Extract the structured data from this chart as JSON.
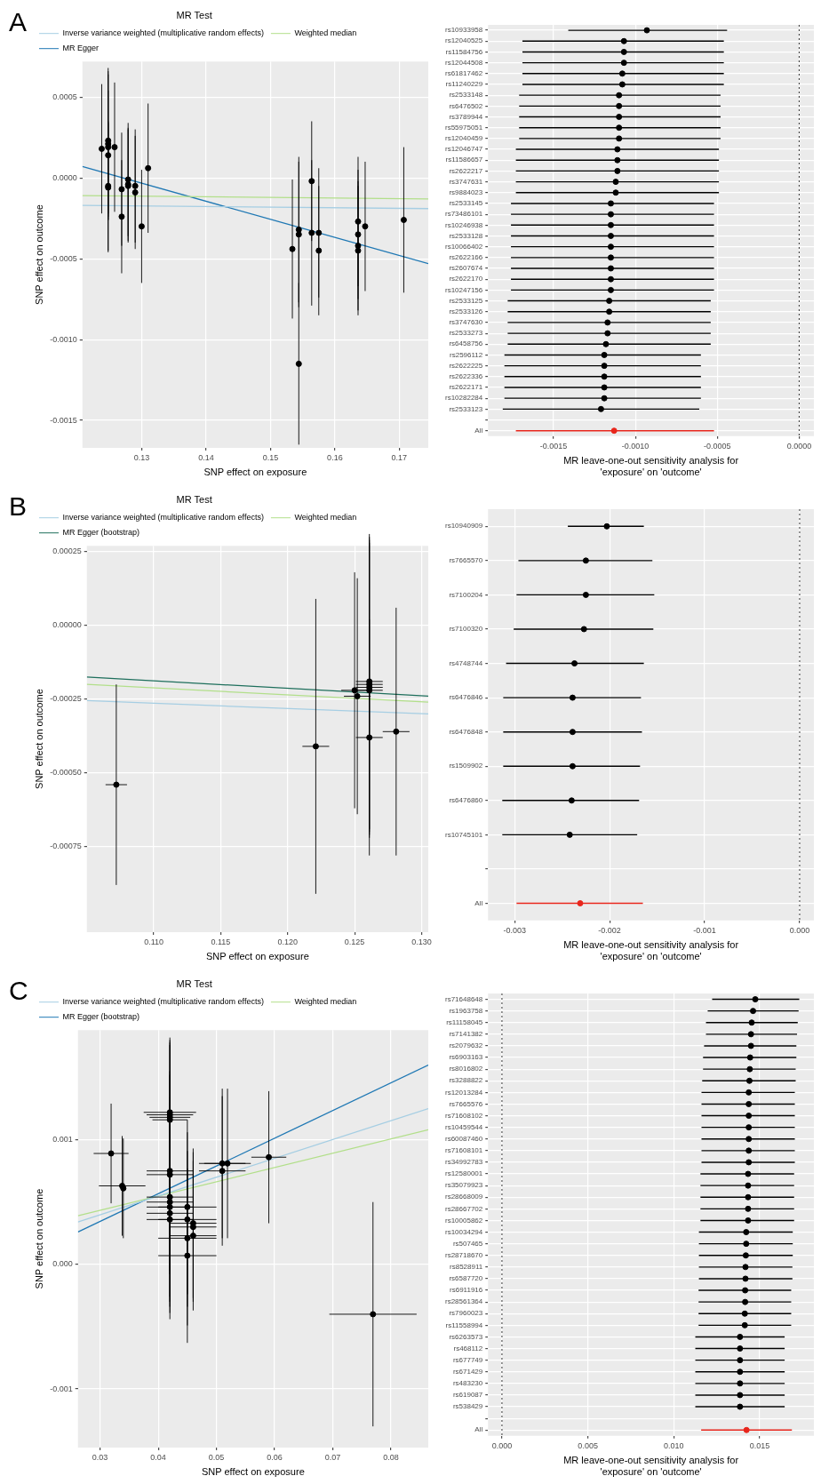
{
  "chart_data": [
    {
      "type": "scatter",
      "title": "A",
      "legend_title": "MR Test",
      "legend": "top",
      "marker": "circle",
      "grid": true,
      "xlabel": "SNP effect on exposure",
      "ylabel": "SNP effect on outcome",
      "xlim": [
        0.1208,
        0.1745
      ],
      "ylim": [
        -0.00167,
        0.00072
      ],
      "xticks": [
        0.13,
        0.14,
        0.15,
        0.16,
        0.17
      ],
      "yticks": [
        0.0005,
        {
          "value": 0,
          "label": "0.0000"
        },
        -0.0005,
        {
          "value": -0.001,
          "label": "-0.0010"
        },
        -0.0015
      ],
      "series": [
        {
          "type": "scatter",
          "color": "#000000",
          "x": [
            0.1238,
            0.1248,
            0.1248,
            0.1248,
            0.1248,
            0.1258,
            0.1248,
            0.1248,
            0.1269,
            0.1269,
            0.1279,
            0.1279,
            0.1279,
            0.129,
            0.129,
            0.13,
            0.131,
            0.1534,
            0.1544,
            0.1544,
            0.1544,
            0.1564,
            0.1564,
            0.1575,
            0.1575,
            0.1636,
            0.1636,
            0.1636,
            0.1636,
            0.1647,
            0.1707
          ],
          "values": [
            0.00018,
            0.00023,
            0.00021,
            0.00019,
            0.00014,
            0.00019,
            -5e-05,
            -6e-05,
            -7e-05,
            -0.00024,
            -1e-05,
            -4e-05,
            -5e-05,
            -5e-05,
            -9e-05,
            -0.0003,
            6e-05,
            -0.00044,
            -0.00032,
            -0.00035,
            -0.00115,
            -2e-05,
            -0.00034,
            -0.00034,
            -0.00045,
            -0.00027,
            -0.00035,
            -0.00042,
            -0.00045,
            -0.0003,
            -0.00026
          ],
          "errors": [
            0.0004,
            0.00045,
            0.00045,
            0.00045,
            0.0004,
            0.0004,
            0.0004,
            0.0004,
            0.00035,
            0.00035,
            0.00035,
            0.00035,
            0.00035,
            0.00035,
            0.00035,
            0.00035,
            0.0004,
            0.00043,
            0.00045,
            0.00045,
            0.0005,
            0.00037,
            0.00045,
            0.0004,
            0.0004,
            0.0004,
            0.0004,
            0.0004,
            0.0004,
            0.0004,
            0.00045
          ]
        },
        {
          "type": "line",
          "marker": "none",
          "name": "Inverse variance weighted (multiplicative random effects)",
          "color": "#a6cee3",
          "x": [
            0.1208,
            0.1745
          ],
          "values": [
            -0.00017,
            -0.00019
          ]
        },
        {
          "type": "line",
          "marker": "none",
          "name": "Weighted median",
          "color": "#b2df8a",
          "x": [
            0.1208,
            0.1745
          ],
          "values": [
            -0.00011,
            -0.00013
          ]
        },
        {
          "type": "line",
          "marker": "none",
          "name": "MR Egger",
          "color": "#1f78b4",
          "x": [
            0.1208,
            0.1745
          ],
          "values": [
            7e-05,
            -0.00053
          ]
        }
      ]
    },
    {
      "type": "scatter",
      "orientation": "horizontal",
      "marker": "circle",
      "grid": true,
      "xlabel": "MR leave-one-out sensitivity analysis for\n'exposure' on 'outcome'",
      "xlim": [
        -0.0019,
        9e-05
      ],
      "xticks": [
        -0.0015,
        {
          "value": -0.001,
          "label": "-0.0010"
        },
        -0.0005,
        {
          "value": 0,
          "label": "0.0000"
        }
      ],
      "ref_lines": [
        {
          "axis": "x",
          "value": 0,
          "line_style": "dotted",
          "color": "#333333"
        }
      ],
      "categories": [
        "rs10933958",
        "rs12040525",
        "rs11584756",
        "rs12044508",
        "rs61817462",
        "rs11240229",
        "rs2533148",
        "rs6476502",
        "rs3789944",
        "rs55975051",
        "rs12040459",
        "rs12046747",
        "rs11586657",
        "rs2622217",
        "rs3747631",
        "rs9884023",
        "rs2533145",
        "rs73486101",
        "rs10246938",
        "rs2533128",
        "rs10066402",
        "rs2622166",
        "rs2607674",
        "rs2622170",
        "rs10247156",
        "rs2533125",
        "rs2533126",
        "rs3747630",
        "rs2533273",
        "rs6458756",
        "rs2596112",
        "rs2622225",
        "rs2622336",
        "rs2622171",
        "rs10282284",
        "rs2533123",
        null,
        "All"
      ],
      "series": [
        {
          "color": "#000000",
          "values": [
            -0.00093,
            -0.00107,
            -0.00107,
            -0.00107,
            -0.00108,
            -0.00108,
            -0.0011,
            -0.0011,
            -0.0011,
            -0.0011,
            -0.0011,
            -0.00111,
            -0.00111,
            -0.00111,
            -0.00112,
            -0.00112,
            -0.00115,
            -0.00115,
            -0.00115,
            -0.00115,
            -0.00115,
            -0.00115,
            -0.00115,
            -0.00115,
            -0.00115,
            -0.00116,
            -0.00116,
            -0.00117,
            -0.00117,
            -0.00118,
            -0.00119,
            -0.00119,
            -0.00119,
            -0.00119,
            -0.00119,
            -0.00121,
            null,
            null
          ],
          "errors": [
            [
              -0.00141,
              -0.00044
            ],
            [
              -0.00169,
              -0.00046
            ],
            [
              -0.00169,
              -0.00046
            ],
            [
              -0.00169,
              -0.00046
            ],
            [
              -0.00169,
              -0.00046
            ],
            [
              -0.00169,
              -0.00046
            ],
            [
              -0.00171,
              -0.00048
            ],
            [
              -0.00171,
              -0.00048
            ],
            [
              -0.00171,
              -0.00048
            ],
            [
              -0.00171,
              -0.00048
            ],
            [
              -0.00171,
              -0.00048
            ],
            [
              -0.00173,
              -0.00049
            ],
            [
              -0.00173,
              -0.00049
            ],
            [
              -0.00173,
              -0.00049
            ],
            [
              -0.00173,
              -0.00049
            ],
            [
              -0.00173,
              -0.00049
            ],
            [
              -0.00176,
              -0.00052
            ],
            [
              -0.00176,
              -0.00052
            ],
            [
              -0.00176,
              -0.00052
            ],
            [
              -0.00176,
              -0.00052
            ],
            [
              -0.00176,
              -0.00052
            ],
            [
              -0.00176,
              -0.00052
            ],
            [
              -0.00176,
              -0.00052
            ],
            [
              -0.00176,
              -0.00052
            ],
            [
              -0.00176,
              -0.00052
            ],
            [
              -0.00178,
              -0.00054
            ],
            [
              -0.00178,
              -0.00054
            ],
            [
              -0.00178,
              -0.00054
            ],
            [
              -0.00178,
              -0.00054
            ],
            [
              -0.00178,
              -0.00054
            ],
            [
              -0.0018,
              -0.0006
            ],
            [
              -0.0018,
              -0.0006
            ],
            [
              -0.0018,
              -0.0006
            ],
            [
              -0.0018,
              -0.0006
            ],
            [
              -0.0018,
              -0.0006
            ],
            [
              -0.00181,
              -0.00061
            ],
            null,
            null
          ]
        },
        {
          "color": "#e8261c",
          "values": [
            null,
            null,
            null,
            null,
            null,
            null,
            null,
            null,
            null,
            null,
            null,
            null,
            null,
            null,
            null,
            null,
            null,
            null,
            null,
            null,
            null,
            null,
            null,
            null,
            null,
            null,
            null,
            null,
            null,
            null,
            null,
            null,
            null,
            null,
            null,
            null,
            null,
            -0.00113
          ],
          "errors": [
            null,
            null,
            null,
            null,
            null,
            null,
            null,
            null,
            null,
            null,
            null,
            null,
            null,
            null,
            null,
            null,
            null,
            null,
            null,
            null,
            null,
            null,
            null,
            null,
            null,
            null,
            null,
            null,
            null,
            null,
            null,
            null,
            null,
            null,
            null,
            null,
            null,
            [
              -0.00173,
              -0.00052
            ]
          ]
        }
      ]
    },
    {
      "type": "scatter",
      "title": "B",
      "legend_title": "MR Test",
      "legend": "top",
      "marker": "circle",
      "grid": true,
      "xlabel": "SNP effect on exposure",
      "ylabel": "SNP effect on outcome",
      "xlim": [
        0.105,
        0.1305
      ],
      "ylim": [
        -0.00104,
        0.00027
      ],
      "xticks": [
        {
          "value": 0.11,
          "label": "0.110"
        },
        0.115,
        {
          "value": 0.12,
          "label": "0.120"
        },
        0.125,
        {
          "value": 0.13,
          "label": "0.130"
        }
      ],
      "yticks": [
        0.00025,
        {
          "value": 0,
          "label": "0.00000"
        },
        -0.00025,
        {
          "value": -0.0005,
          "label": "-0.00050"
        },
        -0.00075
      ],
      "series": [
        {
          "type": "scatter",
          "color": "#000000",
          "x": [
            0.1072,
            0.1221,
            0.125,
            0.1252,
            0.1261,
            0.1261,
            0.1261,
            0.1261,
            0.1261,
            0.1281
          ],
          "values": [
            -0.00054,
            -0.00041,
            -0.00022,
            -0.00024,
            -0.00019,
            -0.0002,
            -0.00021,
            -0.00022,
            -0.00038,
            -0.00036
          ],
          "errors": [
            0.00034,
            0.0005,
            0.0004,
            0.0004,
            0.0005,
            0.0005,
            0.0005,
            0.0005,
            0.0004,
            0.00042
          ],
          "xerrors": [
            0.0008,
            0.001,
            0.001,
            0.001,
            0.001,
            0.001,
            0.001,
            0.001,
            0.001,
            0.001
          ]
        },
        {
          "type": "line",
          "marker": "none",
          "name": "Inverse variance weighted (multiplicative random effects)",
          "color": "#a6cee3",
          "x": [
            0.105,
            0.1305
          ],
          "values": [
            -0.000255,
            -0.0003
          ]
        },
        {
          "type": "line",
          "marker": "none",
          "name": "Weighted median",
          "color": "#b2df8a",
          "x": [
            0.105,
            0.1305
          ],
          "values": [
            -0.0002,
            -0.00026
          ]
        },
        {
          "type": "line",
          "marker": "none",
          "name": "MR Egger (bootstrap)",
          "color": "#1e6f5c",
          "x": [
            0.105,
            0.1305
          ],
          "values": [
            -0.000175,
            -0.00024
          ]
        }
      ]
    },
    {
      "type": "scatter",
      "orientation": "horizontal",
      "marker": "circle",
      "grid": true,
      "xlabel": "MR leave-one-out sensitivity analysis for\n'exposure' on 'outcome'",
      "xlim": [
        -0.00328,
        0.00015
      ],
      "xticks": [
        -0.003,
        -0.002,
        -0.001,
        {
          "value": 0,
          "label": "0.000"
        }
      ],
      "ref_lines": [
        {
          "axis": "x",
          "value": 0,
          "line_style": "dotted",
          "color": "#333333"
        }
      ],
      "categories": [
        "rs10940909",
        "rs7665570",
        "rs7100204",
        "rs7100320",
        "rs4748744",
        "rs6476846",
        "rs6476848",
        "rs1509902",
        "rs6476860",
        "rs10745101",
        null,
        "All"
      ],
      "series": [
        {
          "color": "#000000",
          "values": [
            -0.00203,
            -0.00225,
            -0.00225,
            -0.00227,
            -0.00237,
            -0.00239,
            -0.00239,
            -0.00239,
            -0.0024,
            -0.00242,
            null,
            null
          ],
          "errors": [
            [
              -0.00244,
              -0.00164
            ],
            [
              -0.00296,
              -0.00155
            ],
            [
              -0.00298,
              -0.00153
            ],
            [
              -0.00301,
              -0.00154
            ],
            [
              -0.00309,
              -0.00164
            ],
            [
              -0.00312,
              -0.00167
            ],
            [
              -0.00312,
              -0.00166
            ],
            [
              -0.00312,
              -0.00168
            ],
            [
              -0.00313,
              -0.00169
            ],
            [
              -0.00313,
              -0.00171
            ],
            null,
            null
          ]
        },
        {
          "color": "#e8261c",
          "values": [
            null,
            null,
            null,
            null,
            null,
            null,
            null,
            null,
            null,
            null,
            null,
            -0.00231
          ],
          "errors": [
            null,
            null,
            null,
            null,
            null,
            null,
            null,
            null,
            null,
            null,
            null,
            [
              -0.00298,
              -0.00165
            ]
          ]
        }
      ]
    },
    {
      "type": "scatter",
      "title": "C",
      "legend_title": "MR Test",
      "legend": "top",
      "marker": "circle",
      "grid": true,
      "xlabel": "SNP effect on exposure",
      "ylabel": "SNP effect on outcome",
      "xlim": [
        0.0262,
        0.0864
      ],
      "ylim": [
        -0.00147,
        0.00188
      ],
      "xticks": [
        0.03,
        0.04,
        0.05,
        0.06,
        0.07,
        0.08
      ],
      "yticks": [
        0.001,
        {
          "value": 0,
          "label": "0.000"
        },
        -0.001
      ],
      "series": [
        {
          "type": "scatter",
          "color": "#000000",
          "x": [
            0.0319,
            0.0338,
            0.034,
            0.042,
            0.042,
            0.042,
            0.042,
            0.042,
            0.042,
            0.042,
            0.042,
            0.042,
            0.042,
            0.042,
            0.045,
            0.045,
            0.045,
            0.045,
            0.046,
            0.046,
            0.046,
            0.051,
            0.051,
            0.0519,
            0.059,
            0.0769
          ],
          "values": [
            0.00089,
            0.00063,
            0.00061,
            0.00122,
            0.0012,
            0.00118,
            0.00116,
            0.00075,
            0.00072,
            0.00054,
            0.0005,
            0.00046,
            0.00041,
            0.00036,
            0.00046,
            0.00036,
            0.00021,
            7e-05,
            0.00033,
            0.0003,
            0.00023,
            0.00081,
            0.00075,
            0.00081,
            0.00086,
            -0.0004
          ],
          "errors": [
            0.0004,
            0.0004,
            0.0004,
            0.0006,
            0.0006,
            0.0006,
            0.0006,
            0.0008,
            0.0008,
            0.0008,
            0.0008,
            0.0008,
            0.0008,
            0.0008,
            0.0007,
            0.0007,
            0.0007,
            0.0007,
            0.0006,
            0.0006,
            0.0006,
            0.0006,
            0.0006,
            0.0006,
            0.00053,
            0.0009
          ],
          "xerrors": [
            0.003,
            0.004,
            null,
            0.0045,
            0.004,
            0.0035,
            0.003,
            0.004,
            0.004,
            0.004,
            0.004,
            0.004,
            0.004,
            0.004,
            0.005,
            0.005,
            0.005,
            0.005,
            0.004,
            0.004,
            0.004,
            0.004,
            0.004,
            0.004,
            0.003,
            0.0075
          ]
        },
        {
          "type": "line",
          "marker": "none",
          "name": "Inverse variance weighted (multiplicative random effects)",
          "color": "#a6cee3",
          "x": [
            0.0262,
            0.0864
          ],
          "values": [
            0.00034,
            0.00125
          ]
        },
        {
          "type": "line",
          "marker": "none",
          "name": "Weighted median",
          "color": "#b2df8a",
          "x": [
            0.0262,
            0.0864
          ],
          "values": [
            0.00039,
            0.00108
          ]
        },
        {
          "type": "line",
          "marker": "none",
          "name": "MR Egger (bootstrap)",
          "color": "#1f78b4",
          "x": [
            0.0262,
            0.0864
          ],
          "values": [
            0.00026,
            0.0016
          ]
        }
      ]
    },
    {
      "type": "scatter",
      "orientation": "horizontal",
      "marker": "circle",
      "grid": true,
      "xlabel": "MR leave-one-out sensitivity analysis for\n'exposure' on 'outcome'",
      "xlim": [
        -0.00081,
        0.01815
      ],
      "xticks": [
        {
          "value": 0,
          "label": "0.000"
        },
        0.005,
        {
          "value": 0.01,
          "label": "0.010"
        },
        0.015
      ],
      "ref_lines": [
        {
          "axis": "x",
          "value": 0,
          "line_style": "dotted",
          "color": "#333333"
        }
      ],
      "categories": [
        "rs71648648",
        "rs1963758",
        "rs11158045",
        "rs7141382",
        "rs2079632",
        "rs6903163",
        "rs8016802",
        "rs3288822",
        "rs12013284",
        "rs7665576",
        "rs71608102",
        "rs10459544",
        "rs60087460",
        "rs71608101",
        "rs34992783",
        "rs12580001",
        "rs35079923",
        "rs28668009",
        "rs28667702",
        "rs10005862",
        "rs10034294",
        "rs507465",
        "rs28718670",
        "rs8528911",
        "rs6587720",
        "rs6911916",
        "rs28561364",
        "rs7960023",
        "rs11558994",
        "rs6263573",
        "rs468112",
        "rs677749",
        "rs671429",
        "rs483230",
        "rs619087",
        "rs538429",
        null,
        "All"
      ],
      "series": [
        {
          "color": "#000000",
          "values": [
            0.01474,
            0.01461,
            0.01453,
            0.01449,
            0.01449,
            0.01444,
            0.01442,
            0.0144,
            0.01436,
            0.01436,
            0.01436,
            0.01436,
            0.01436,
            0.01436,
            0.01436,
            0.01432,
            0.01432,
            0.01432,
            0.01432,
            0.01432,
            0.01421,
            0.01421,
            0.01419,
            0.01417,
            0.01417,
            0.01415,
            0.01415,
            0.01413,
            0.01413,
            0.01385,
            0.01385,
            0.01385,
            0.01385,
            0.01385,
            0.01385,
            0.01385,
            null,
            null
          ],
          "errors": [
            [
              0.01223,
              0.0173
            ],
            [
              0.01197,
              0.01726
            ],
            [
              0.01187,
              0.01721
            ],
            [
              0.01187,
              0.01717
            ],
            [
              0.01176,
              0.01713
            ],
            [
              0.0117,
              0.01713
            ],
            [
              0.0117,
              0.01709
            ],
            [
              0.01165,
              0.01709
            ],
            [
              0.01161,
              0.01704
            ],
            [
              0.01161,
              0.01704
            ],
            [
              0.01161,
              0.01704
            ],
            [
              0.01161,
              0.01704
            ],
            [
              0.01161,
              0.01704
            ],
            [
              0.01161,
              0.01704
            ],
            [
              0.01161,
              0.01704
            ],
            [
              0.01155,
              0.017
            ],
            [
              0.01155,
              0.017
            ],
            [
              0.01155,
              0.017
            ],
            [
              0.01155,
              0.017
            ],
            [
              0.01155,
              0.017
            ],
            [
              0.01146,
              0.01692
            ],
            [
              0.01146,
              0.01692
            ],
            [
              0.01146,
              0.01692
            ],
            [
              0.01146,
              0.0169
            ],
            [
              0.01146,
              0.0169
            ],
            [
              0.01144,
              0.01683
            ],
            [
              0.01144,
              0.01683
            ],
            [
              0.01144,
              0.01683
            ],
            [
              0.01144,
              0.01683
            ],
            [
              0.01125,
              0.01645
            ],
            [
              0.01125,
              0.01645
            ],
            [
              0.01125,
              0.01645
            ],
            [
              0.01125,
              0.01645
            ],
            [
              0.01125,
              0.01645
            ],
            [
              0.01125,
              0.01645
            ],
            [
              0.01125,
              0.01645
            ],
            null,
            null
          ]
        },
        {
          "color": "#e8261c",
          "values": [
            null,
            null,
            null,
            null,
            null,
            null,
            null,
            null,
            null,
            null,
            null,
            null,
            null,
            null,
            null,
            null,
            null,
            null,
            null,
            null,
            null,
            null,
            null,
            null,
            null,
            null,
            null,
            null,
            null,
            null,
            null,
            null,
            null,
            null,
            null,
            null,
            null,
            0.01423
          ],
          "errors": [
            null,
            null,
            null,
            null,
            null,
            null,
            null,
            null,
            null,
            null,
            null,
            null,
            null,
            null,
            null,
            null,
            null,
            null,
            null,
            null,
            null,
            null,
            null,
            null,
            null,
            null,
            null,
            null,
            null,
            null,
            null,
            null,
            null,
            null,
            null,
            null,
            null,
            [
              0.01159,
              0.01687
            ]
          ]
        }
      ]
    }
  ]
}
